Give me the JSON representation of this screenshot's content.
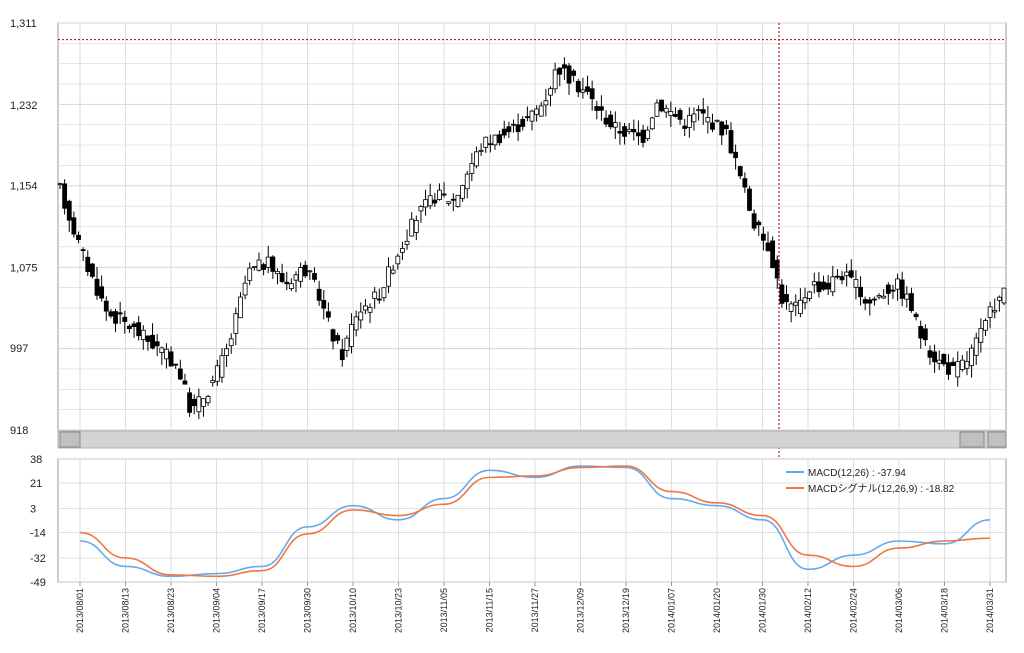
{
  "colors": {
    "background": "#ffffff",
    "grid": "#d6d6d6",
    "axis": "#9a9a9a",
    "candle_up_fill": "#ffffff",
    "candle_down_fill": "#000000",
    "candle_stroke": "#000000",
    "crosshair": "#b02020",
    "scrollbar_track": "#d4d4d4",
    "scrollbar_button": "#c0c0c0",
    "macd": "#66aaee",
    "signal": "#ee7744"
  },
  "scrollbar": {
    "left_icon": "scroll-left-button",
    "right_icon": "scroll-right-button"
  },
  "chart_data": [
    {
      "type": "candlestick",
      "panel": "price",
      "ylim": [
        918,
        1311
      ],
      "yticks": [
        "1,311",
        "1,232",
        "1,154",
        "1,075",
        "997",
        "918"
      ],
      "ytick_values": [
        1311,
        1232,
        1154,
        1075,
        997,
        918
      ],
      "crosshair": {
        "date": "2014/02/05",
        "price": 1295
      },
      "series": [
        {
          "name": "price",
          "waypoints": [
            [
              0,
              1150
            ],
            [
              5,
              1085
            ],
            [
              10,
              1032
            ],
            [
              15,
              1018
            ],
            [
              20,
              1000
            ],
            [
              25,
              980
            ],
            [
              28,
              935
            ],
            [
              32,
              960
            ],
            [
              36,
              1000
            ],
            [
              40,
              1070
            ],
            [
              44,
              1080
            ],
            [
              48,
              1060
            ],
            [
              52,
              1075
            ],
            [
              55,
              1050
            ],
            [
              58,
              1010
            ],
            [
              60,
              990
            ],
            [
              63,
              1030
            ],
            [
              68,
              1050
            ],
            [
              72,
              1090
            ],
            [
              76,
              1125
            ],
            [
              80,
              1145
            ],
            [
              84,
              1140
            ],
            [
              87,
              1170
            ],
            [
              90,
              1195
            ],
            [
              95,
              1205
            ],
            [
              100,
              1220
            ],
            [
              103,
              1235
            ],
            [
              106,
              1270
            ],
            [
              109,
              1255
            ],
            [
              112,
              1245
            ],
            [
              115,
              1225
            ],
            [
              118,
              1210
            ],
            [
              121,
              1205
            ],
            [
              124,
              1200
            ],
            [
              127,
              1235
            ],
            [
              130,
              1225
            ],
            [
              133,
              1215
            ],
            [
              136,
              1225
            ],
            [
              139,
              1215
            ],
            [
              142,
              1205
            ],
            [
              145,
              1160
            ],
            [
              148,
              1115
            ],
            [
              151,
              1095
            ],
            [
              154,
              1040
            ],
            [
              157,
              1035
            ],
            [
              160,
              1060
            ],
            [
              163,
              1055
            ],
            [
              166,
              1070
            ],
            [
              169,
              1060
            ],
            [
              172,
              1040
            ],
            [
              175,
              1050
            ],
            [
              178,
              1060
            ],
            [
              181,
              1040
            ],
            [
              184,
              1000
            ],
            [
              187,
              985
            ],
            [
              190,
              975
            ],
            [
              193,
              985
            ],
            [
              196,
              1010
            ],
            [
              199,
              1040
            ],
            [
              201,
              1050
            ]
          ]
        }
      ]
    },
    {
      "type": "line",
      "panel": "macd",
      "ylim": [
        -49,
        38
      ],
      "yticks": [
        "38",
        "21",
        "3",
        "-14",
        "-32",
        "-49"
      ],
      "ytick_values": [
        38,
        21,
        3,
        -14,
        -32,
        -49
      ],
      "legend_position": "top-right",
      "x": [
        "2013/08/01",
        "2013/08/13",
        "2013/08/23",
        "2013/09/04",
        "2013/09/17",
        "2013/09/30",
        "2013/10/10",
        "2013/10/23",
        "2013/11/05",
        "2013/11/15",
        "2013/11/27",
        "2013/12/09",
        "2013/12/19",
        "2014/01/07",
        "2014/01/20",
        "2014/01/30",
        "2014/02/12",
        "2014/02/24",
        "2014/03/06",
        "2014/03/18",
        "2014/03/31"
      ],
      "series": [
        {
          "name": "MACD(12,26)",
          "label": "MACD(12,26) : -37.94",
          "values": [
            -20,
            -38,
            -45,
            -43,
            -38,
            -10,
            5,
            -5,
            10,
            30,
            25,
            33,
            32,
            10,
            5,
            -5,
            -40,
            -30,
            -20,
            -22,
            -5
          ]
        },
        {
          "name": "MACDシグナル(12,26,9)",
          "label": "MACDシグナル(12,26,9) : -18.82",
          "values": [
            -14,
            -32,
            -44,
            -45,
            -41,
            -15,
            2,
            -2,
            6,
            25,
            26,
            32,
            33,
            15,
            7,
            -2,
            -30,
            -38,
            -25,
            -20,
            -18
          ]
        }
      ]
    }
  ]
}
